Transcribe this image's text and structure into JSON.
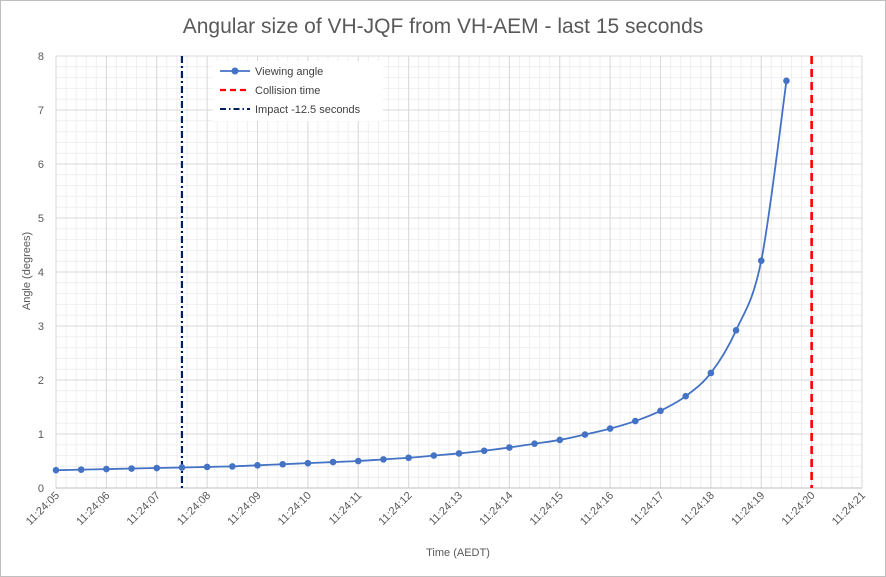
{
  "chart_data": {
    "type": "line",
    "title": "Angular size of VH-JQF from VH-AEM - last 15 seconds",
    "xlabel": "Time (AEDT)",
    "ylabel": "Angle (degrees)",
    "xlim_seconds": [
      5,
      21
    ],
    "x_tick_labels": [
      "11:24:05",
      "11:24:06",
      "11:24:07",
      "11:24:08",
      "11:24:09",
      "11:24:10",
      "11:24:11",
      "11:24:12",
      "11:24:13",
      "11:24:14",
      "11:24:15",
      "11:24:16",
      "11:24:17",
      "11:24:18",
      "11:24:19",
      "11:24:20",
      "11:24:21"
    ],
    "ylim": [
      0,
      8
    ],
    "y_ticks": [
      0,
      1,
      2,
      3,
      4,
      5,
      6,
      7,
      8
    ],
    "grid": true,
    "legend_position": "top-left",
    "series": [
      {
        "name": "Viewing angle",
        "color": "#4472C4",
        "x": [
          "11:24:05.0",
          "11:24:05.5",
          "11:24:06.0",
          "11:24:06.5",
          "11:24:07.0",
          "11:24:07.5",
          "11:24:08.0",
          "11:24:08.5",
          "11:24:09.0",
          "11:24:09.5",
          "11:24:10.0",
          "11:24:10.5",
          "11:24:11.0",
          "11:24:11.5",
          "11:24:12.0",
          "11:24:12.5",
          "11:24:13.0",
          "11:24:13.5",
          "11:24:14.0",
          "11:24:14.5",
          "11:24:15.0",
          "11:24:15.5",
          "11:24:16.0",
          "11:24:16.5",
          "11:24:17.0",
          "11:24:17.5",
          "11:24:18.0",
          "11:24:18.5",
          "11:24:19.0",
          "11:24:19.5"
        ],
        "y": [
          0.33,
          0.34,
          0.35,
          0.36,
          0.37,
          0.38,
          0.39,
          0.4,
          0.42,
          0.44,
          0.46,
          0.48,
          0.5,
          0.53,
          0.56,
          0.6,
          0.64,
          0.69,
          0.75,
          0.82,
          0.89,
          0.99,
          1.1,
          1.24,
          1.43,
          1.7,
          2.13,
          2.92,
          4.21,
          7.54
        ]
      }
    ],
    "vertical_lines": [
      {
        "name": "Collision time",
        "x": "11:24:20.0",
        "color": "#FF0000",
        "style": "dashed"
      },
      {
        "name": "Impact -12.5 seconds",
        "x": "11:24:07.5",
        "color": "#002060",
        "style": "dash-dot"
      }
    ]
  }
}
